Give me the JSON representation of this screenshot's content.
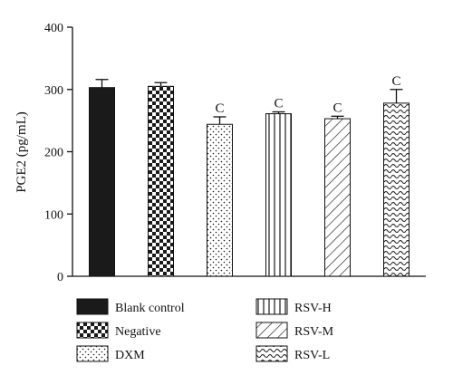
{
  "chart_data": {
    "type": "bar",
    "ylabel": "PGE2 (pg/mL)",
    "ylim": [
      0,
      400
    ],
    "yticks": [
      0,
      100,
      200,
      300,
      400
    ],
    "grid": false,
    "legend_position": "bottom",
    "categories": [
      "Blank control",
      "Negative",
      "DXM",
      "RSV-H",
      "RSV-M",
      "RSV-L"
    ],
    "values": [
      303,
      305,
      244,
      261,
      253,
      278
    ],
    "errors": [
      13,
      6,
      12,
      3,
      4,
      22
    ],
    "annotations": [
      "",
      "",
      "C",
      "C",
      "C",
      "C"
    ],
    "patterns": [
      "solid",
      "checker",
      "dots",
      "vertical-lines",
      "diagonal-lines",
      "wave"
    ],
    "colors": {
      "bar_fill": "#1a1a1a",
      "background": "#ffffff"
    }
  }
}
